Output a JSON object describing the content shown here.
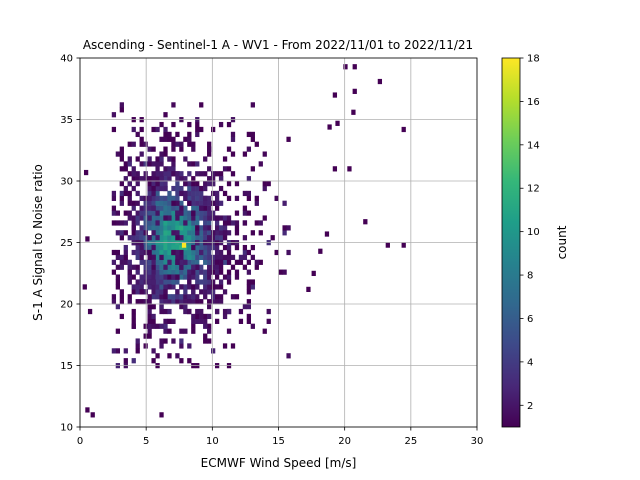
{
  "chart_data": {
    "type": "heatmap",
    "title": "Ascending - Sentinel-1 A - WV1 - From 2022/11/01 to 2022/11/21",
    "xlabel": "ECMWF Wind Speed [m/s]",
    "ylabel": "S-1 A Signal to Noise ratio",
    "xlim": [
      0,
      30
    ],
    "ylim": [
      10,
      40
    ],
    "x_ticks": [
      0,
      5,
      10,
      15,
      20,
      25,
      30
    ],
    "y_ticks": [
      10,
      15,
      20,
      25,
      30,
      35,
      40
    ],
    "grid": true,
    "bin_size": {
      "x": 0.3,
      "y": 0.4
    },
    "colorbar": {
      "label": "count",
      "min": 1,
      "max": 18,
      "ticks": [
        2,
        4,
        6,
        8,
        10,
        12,
        14,
        16,
        18
      ],
      "colormap": "viridis"
    },
    "distribution": {
      "center": {
        "x": 7.0,
        "y": 25.0
      },
      "core_extent_x": [
        2.5,
        12.5
      ],
      "core_extent_y": [
        15.0,
        36.0
      ],
      "peak": {
        "x": 7.7,
        "y": 24.6,
        "count": 18
      }
    },
    "outlier_cells": [
      [
        19.9,
        39.1
      ],
      [
        20.6,
        39.1
      ],
      [
        22.5,
        37.9
      ],
      [
        19.1,
        36.8
      ],
      [
        20.6,
        37.1
      ],
      [
        20.5,
        35.4
      ],
      [
        19.3,
        34.5
      ],
      [
        24.3,
        34.0
      ],
      [
        18.7,
        34.2
      ],
      [
        19.1,
        30.8
      ],
      [
        20.2,
        30.8
      ],
      [
        21.4,
        26.5
      ],
      [
        23.1,
        24.6
      ],
      [
        24.3,
        24.6
      ],
      [
        18.5,
        25.5
      ],
      [
        18.0,
        24.1
      ],
      [
        17.5,
        22.3
      ],
      [
        17.1,
        21.0
      ],
      [
        0.4,
        11.2
      ],
      [
        0.8,
        10.8
      ],
      [
        6.0,
        10.8
      ],
      [
        0.4,
        25.1
      ],
      [
        0.2,
        21.2
      ],
      [
        0.6,
        19.2
      ],
      [
        0.3,
        30.5
      ]
    ]
  },
  "colors": {
    "grid": "#b0b0b0",
    "axes": "#000000",
    "background": "#ffffff",
    "viridis_stops": [
      "#440154",
      "#482878",
      "#3e4989",
      "#31688e",
      "#26828e",
      "#1f9e89",
      "#35b779",
      "#6ece58",
      "#b5de2b",
      "#fde725"
    ]
  }
}
